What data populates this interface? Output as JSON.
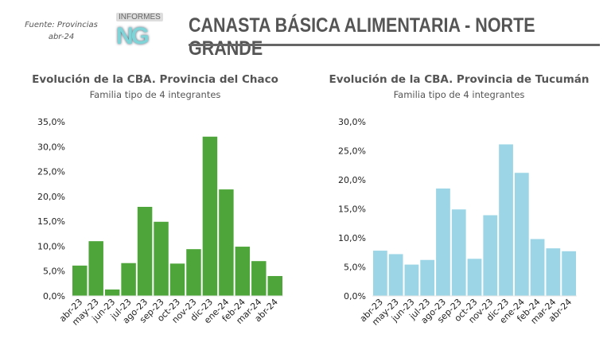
{
  "source": {
    "line1": "Fuente: Provincias",
    "line2": "abr-24"
  },
  "logo": {
    "top": "INFORMES",
    "mark": "NG"
  },
  "header": {
    "title": "CANASTA BÁSICA ALIMENTARIA - NORTE GRANDE"
  },
  "chart_data": [
    {
      "type": "bar",
      "title": "Evolución de la CBA. Provincia del Chaco",
      "subtitle": "Familia tipo de 4 integrantes",
      "categories": [
        "abr-23",
        "may-23",
        "jun-23",
        "jul-23",
        "ago-23",
        "sep-23",
        "oct-23",
        "nov-23",
        "dic-23",
        "ene-24",
        "feb-24",
        "mar-24",
        "abr-24"
      ],
      "values": [
        6.1,
        11.0,
        1.3,
        6.6,
        17.9,
        14.9,
        6.5,
        9.4,
        32.0,
        21.4,
        9.9,
        7.0,
        4.0
      ],
      "ylim": [
        0,
        35
      ],
      "yticks": [
        "0,0%",
        "5,0%",
        "10,0%",
        "15,0%",
        "20,0%",
        "25,0%",
        "30,0%",
        "35,0%"
      ],
      "color": "#4ea53a",
      "grid": false
    },
    {
      "type": "bar",
      "title": "Evolución de la CBA. Provincia de Tucumán",
      "subtitle": "Familia tipo de 4 integrantes",
      "categories": [
        "abr-23",
        "may-23",
        "jun-23",
        "jul-23",
        "ago-23",
        "sep-23",
        "oct-23",
        "nov-23",
        "dic-23",
        "ene-24",
        "feb-24",
        "mar-24",
        "abr-24"
      ],
      "values": [
        7.8,
        7.2,
        5.4,
        6.2,
        18.5,
        14.9,
        6.4,
        13.9,
        26.1,
        21.2,
        9.8,
        8.2,
        7.7
      ],
      "ylim": [
        0,
        30
      ],
      "yticks": [
        "0,0%",
        "5,0%",
        "10,0%",
        "15,0%",
        "20,0%",
        "25,0%",
        "30,0%"
      ],
      "color": "#9cd6e6",
      "grid": false
    }
  ]
}
